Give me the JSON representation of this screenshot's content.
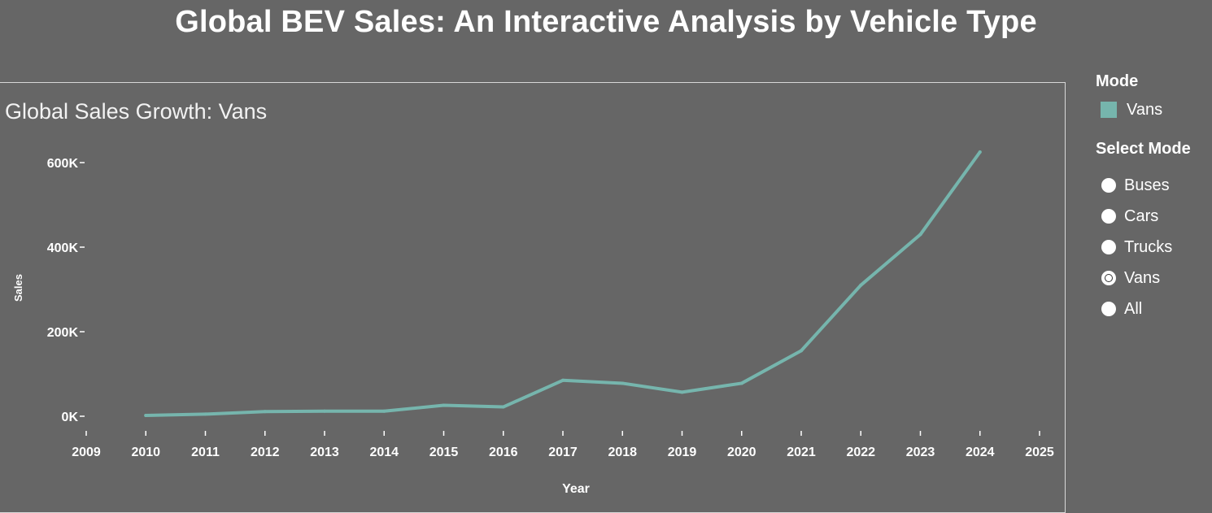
{
  "page": {
    "title": "Global BEV Sales: An Interactive Analysis by Vehicle Type"
  },
  "legend": {
    "title": "Mode",
    "item_label": "Vans",
    "item_color": "#76b5ad"
  },
  "selector": {
    "title": "Select Mode",
    "options": [
      "Buses",
      "Cars",
      "Trucks",
      "Vans",
      "All"
    ],
    "selected": "Vans"
  },
  "colors": {
    "background": "#666666",
    "line": "#76b5ad",
    "text": "#ffffff"
  },
  "chart_data": {
    "type": "line",
    "title": "Global Sales Growth: Vans",
    "xlabel": "Year",
    "ylabel": "Sales",
    "x": [
      2010,
      2011,
      2012,
      2013,
      2014,
      2015,
      2016,
      2017,
      2018,
      2019,
      2020,
      2021,
      2022,
      2023,
      2024
    ],
    "series": [
      {
        "name": "Vans",
        "values": [
          2000,
          5000,
          11000,
          12000,
          12000,
          26000,
          22000,
          85000,
          78000,
          57000,
          78000,
          155000,
          310000,
          430000,
          625000
        ]
      }
    ],
    "xlim": [
      2009,
      2025
    ],
    "ylim": [
      0,
      640000
    ],
    "x_ticks": [
      "2009",
      "2010",
      "2011",
      "2012",
      "2013",
      "2014",
      "2015",
      "2016",
      "2017",
      "2018",
      "2019",
      "2020",
      "2021",
      "2022",
      "2023",
      "2024",
      "2025"
    ],
    "y_ticks": [
      {
        "value": 0,
        "label": "0K"
      },
      {
        "value": 200000,
        "label": "200K"
      },
      {
        "value": 400000,
        "label": "400K"
      },
      {
        "value": 600000,
        "label": "600K"
      }
    ],
    "grid": false
  }
}
